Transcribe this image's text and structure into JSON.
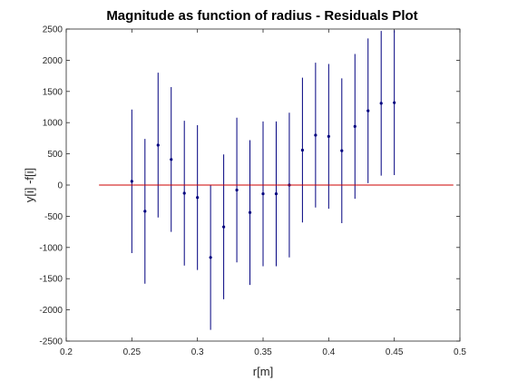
{
  "chart_data": {
    "type": "scatter",
    "title": "Magnitude as function of radius - Residuals Plot",
    "xlabel": "r[m]",
    "ylabel": "y[i] -f[i]",
    "xlim": [
      0.2,
      0.5
    ],
    "ylim": [
      -2500,
      2500
    ],
    "xticks": [
      "0.2",
      "0.25",
      "0.3",
      "0.35",
      "0.4",
      "0.45",
      "0.5"
    ],
    "yticks": [
      "-2500",
      "-2000",
      "-1500",
      "-1000",
      "-500",
      "0",
      "500",
      "1000",
      "1500",
      "2000",
      "2500"
    ],
    "grid": false,
    "series": [
      {
        "kind": "errorbar",
        "color": "#00007f",
        "x": [
          0.25,
          0.26,
          0.27,
          0.28,
          0.29,
          0.3,
          0.31,
          0.32,
          0.33,
          0.34,
          0.35,
          0.36,
          0.37,
          0.38,
          0.39,
          0.4,
          0.41,
          0.42,
          0.43,
          0.44,
          0.45
        ],
        "y": [
          60,
          -420,
          640,
          410,
          -130,
          -200,
          -1160,
          -670,
          -80,
          -440,
          -140,
          -140,
          0,
          560,
          800,
          780,
          550,
          940,
          1190,
          1310,
          1320
        ],
        "error": [
          1150,
          1160,
          1160,
          1160,
          1160,
          1160,
          1160,
          1160,
          1160,
          1160,
          1160,
          1160,
          1160,
          1160,
          1160,
          1160,
          1160,
          1160,
          1160,
          1160,
          1160
        ]
      },
      {
        "kind": "line",
        "color": "#cc0000",
        "x": [
          0.225,
          0.495
        ],
        "y": [
          0,
          0
        ]
      }
    ]
  }
}
